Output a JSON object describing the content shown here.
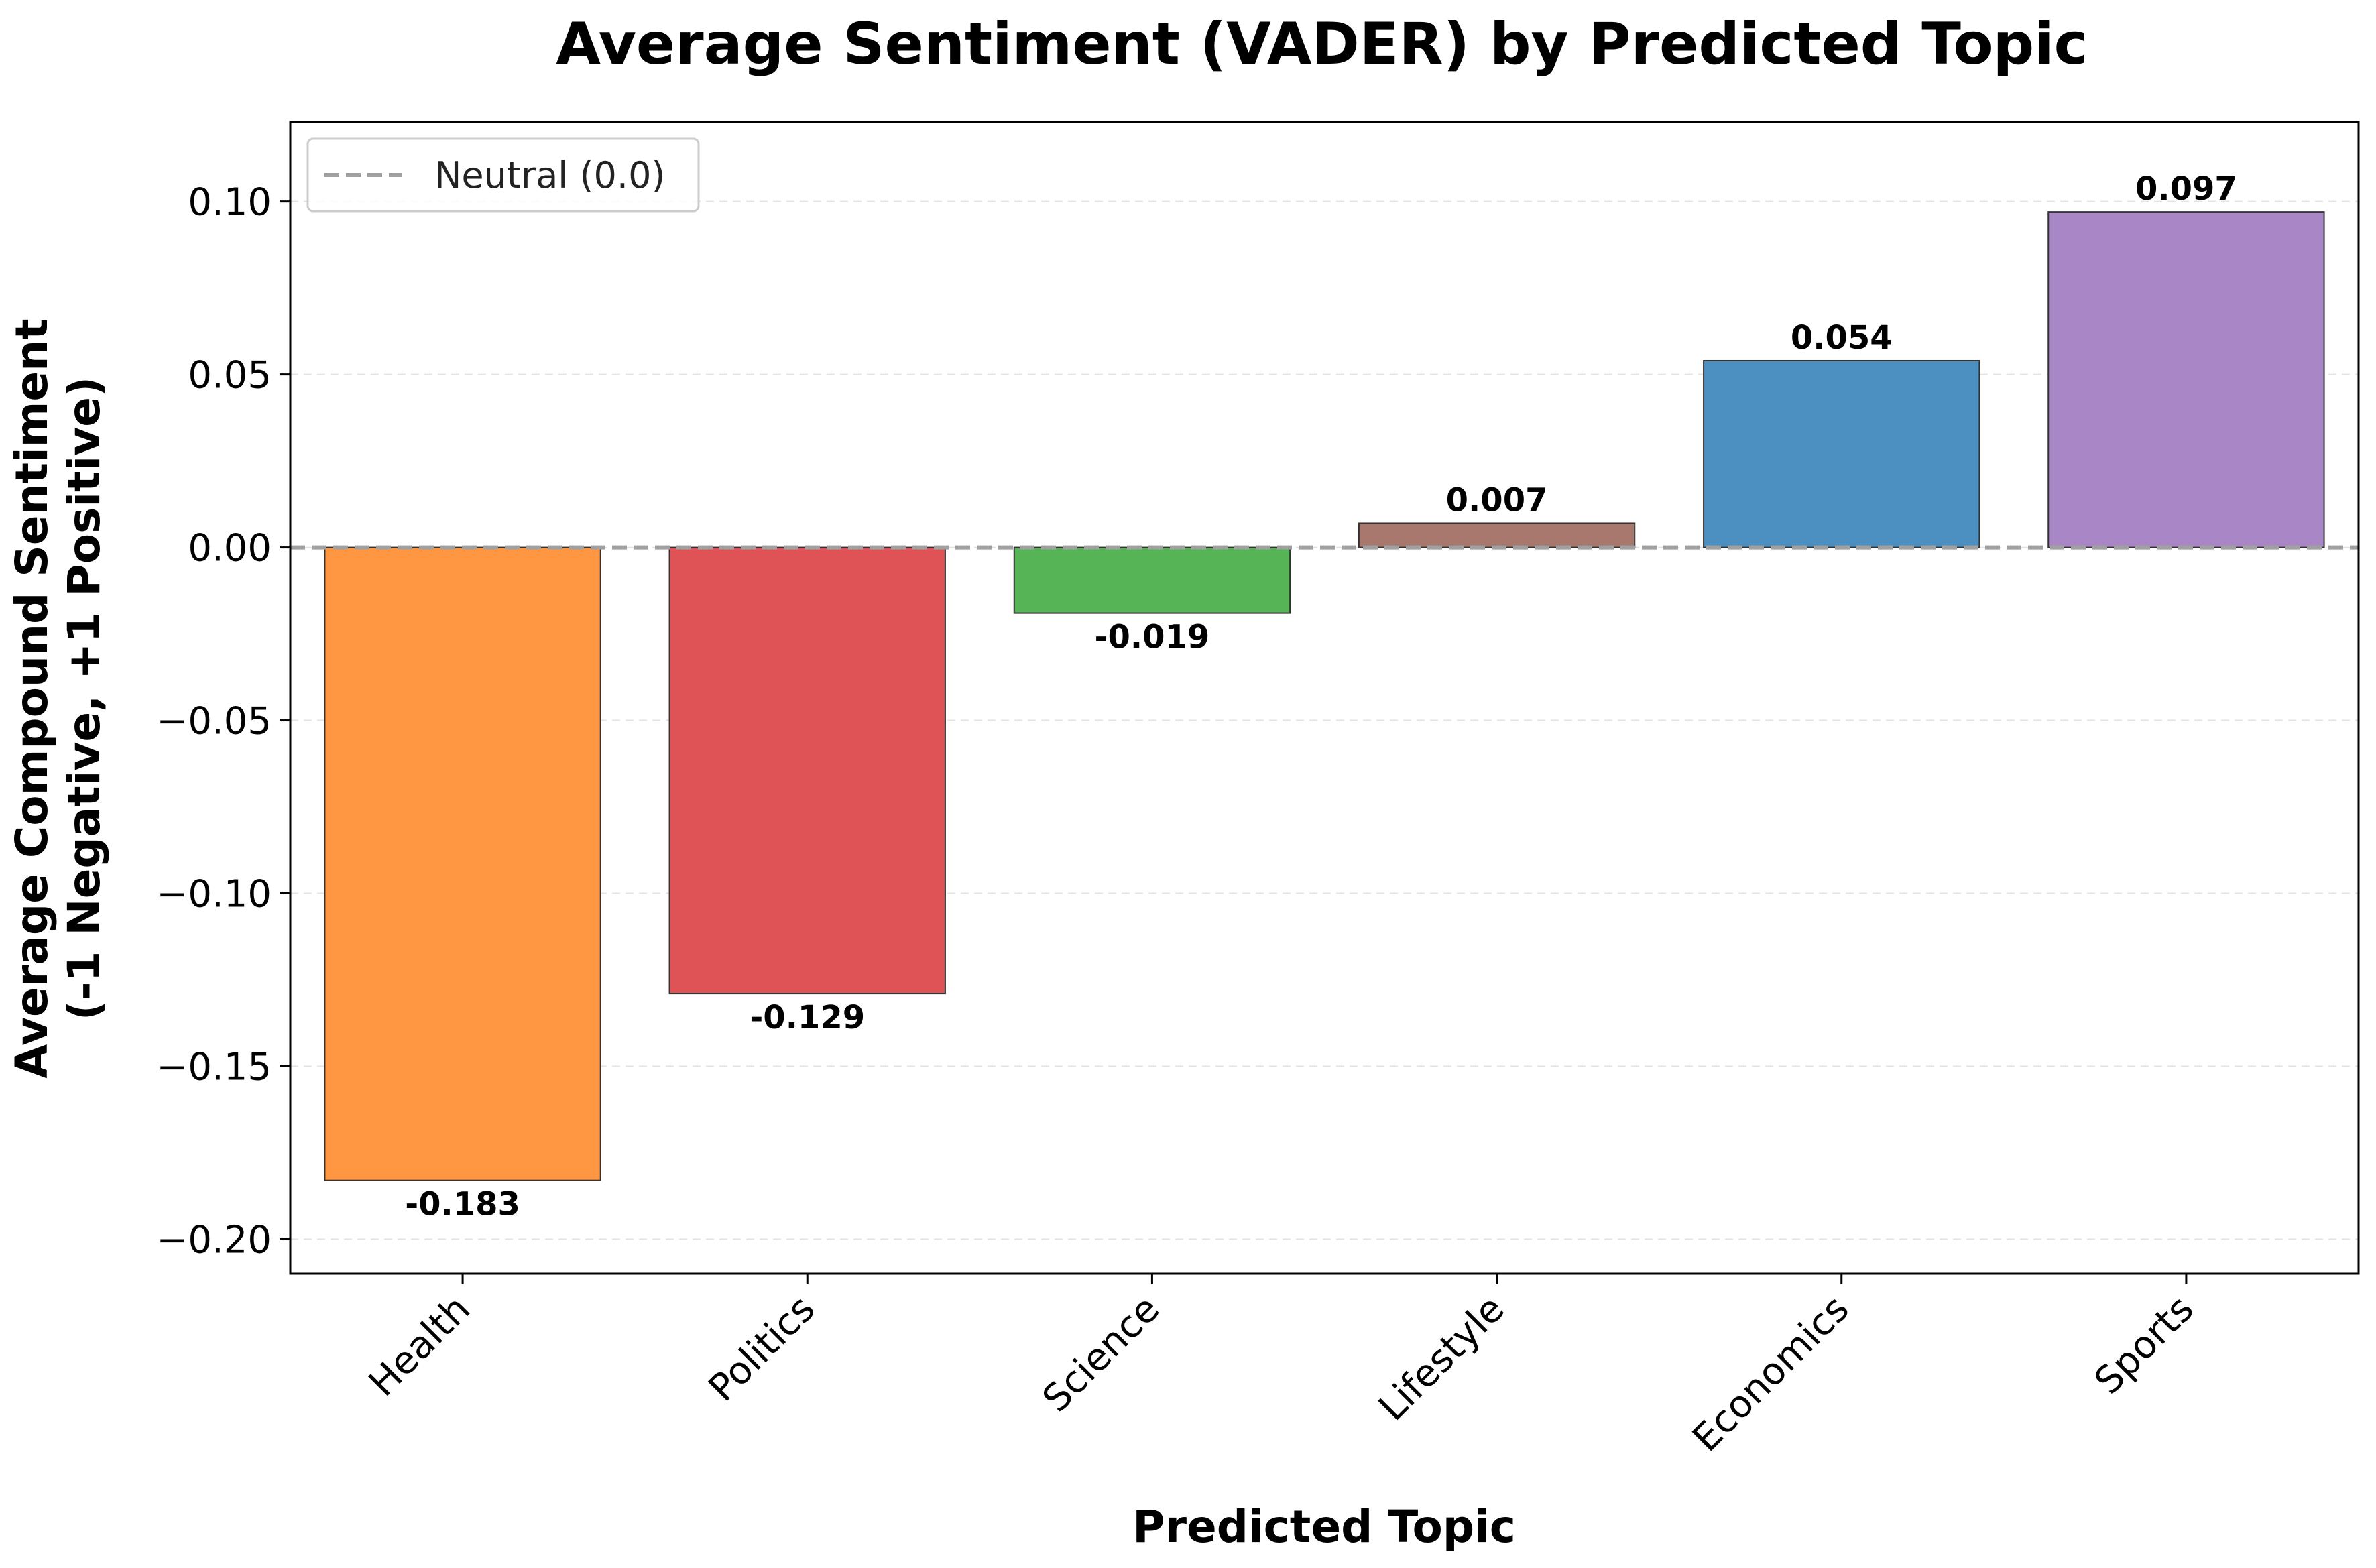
{
  "chart_data": {
    "type": "bar",
    "title": "Average Sentiment (VADER) by Predicted Topic",
    "xlabel": "Predicted Topic",
    "ylabel_line1": "Average Compound Sentiment",
    "ylabel_line2": "(-1 Negative, +1 Positive)",
    "categories": [
      "Health",
      "Politics",
      "Science",
      "Lifestyle",
      "Economics",
      "Sports"
    ],
    "values": [
      -0.183,
      -0.129,
      -0.019,
      0.007,
      0.054,
      0.097
    ],
    "value_labels": [
      "-0.183",
      "-0.129",
      "-0.019",
      "0.007",
      "0.054",
      "0.097"
    ],
    "colors": [
      "#ff9641",
      "#df5356",
      "#56b356",
      "#a8776e",
      "#4c90c2",
      "#a987c7"
    ],
    "ylim": [
      -0.21,
      0.123
    ],
    "yticks": [
      -0.2,
      -0.15,
      -0.1,
      -0.05,
      0.0,
      0.05,
      0.1
    ],
    "ytick_labels": [
      "−0.20",
      "−0.15",
      "−0.10",
      "−0.05",
      "0.00",
      "0.05",
      "0.10"
    ],
    "reference_line": {
      "value": 0.0,
      "style": "dashed",
      "color": "#a0a0a0"
    },
    "legend": {
      "entries": [
        "Neutral (0.0)"
      ],
      "placement": "top-left"
    },
    "grid": "y-dashed"
  }
}
